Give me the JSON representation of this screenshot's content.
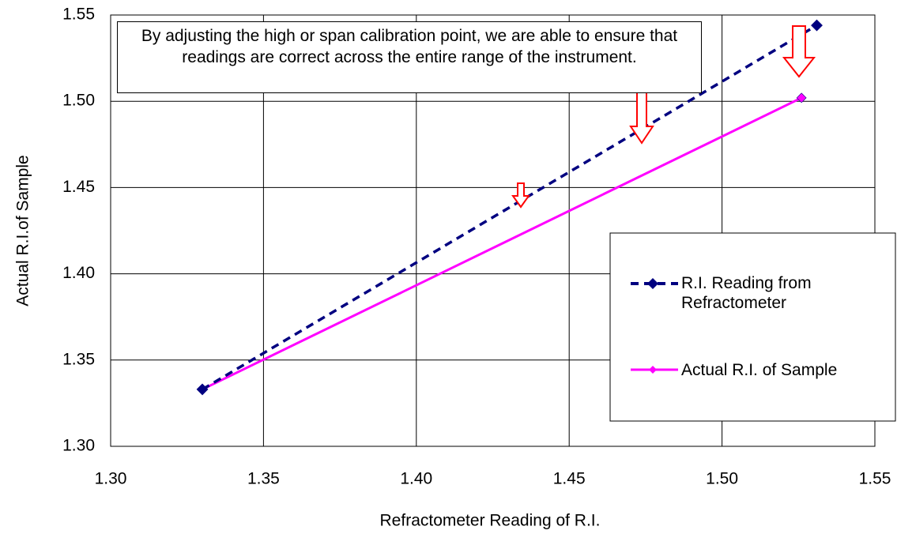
{
  "chart_data": {
    "type": "scatter",
    "x_label": "Refractometer Reading of R.I.",
    "y_label": "Actual R.I.of Sample",
    "annotation": "By adjusting the high or span calibration point, we are able to ensure that readings are correct across the entire range of the instrument.",
    "series": [
      {
        "name": "R.I. Reading from Refractometer",
        "color": "#000080",
        "style": "dashed",
        "marker": "diamond",
        "x": [
          1.33,
          1.531
        ],
        "values": [
          1.333,
          1.544
        ]
      },
      {
        "name": "Actual R.I. of Sample",
        "color": "#ff00ff",
        "style": "solid",
        "marker": "diamond",
        "x": [
          1.33,
          1.526
        ],
        "values": [
          1.333,
          1.502
        ]
      }
    ],
    "xlim": [
      1.3,
      1.55
    ],
    "ylim": [
      1.3,
      1.55
    ],
    "xticks": [
      {
        "value": 1.3,
        "label": "1.30"
      },
      {
        "value": 1.35,
        "label": "1.35"
      },
      {
        "value": 1.4,
        "label": "1.40"
      },
      {
        "value": 1.45,
        "label": "1.45"
      },
      {
        "value": 1.5,
        "label": "1.50"
      },
      {
        "value": 1.55,
        "label": "1.55"
      }
    ],
    "yticks": [
      {
        "value": 1.3,
        "label": "1.30"
      },
      {
        "value": 1.35,
        "label": "1.35"
      },
      {
        "value": 1.4,
        "label": "1.40"
      },
      {
        "value": 1.45,
        "label": "1.45"
      },
      {
        "value": 1.5,
        "label": "1.50"
      },
      {
        "value": 1.55,
        "label": "1.55"
      }
    ],
    "grid": true
  }
}
